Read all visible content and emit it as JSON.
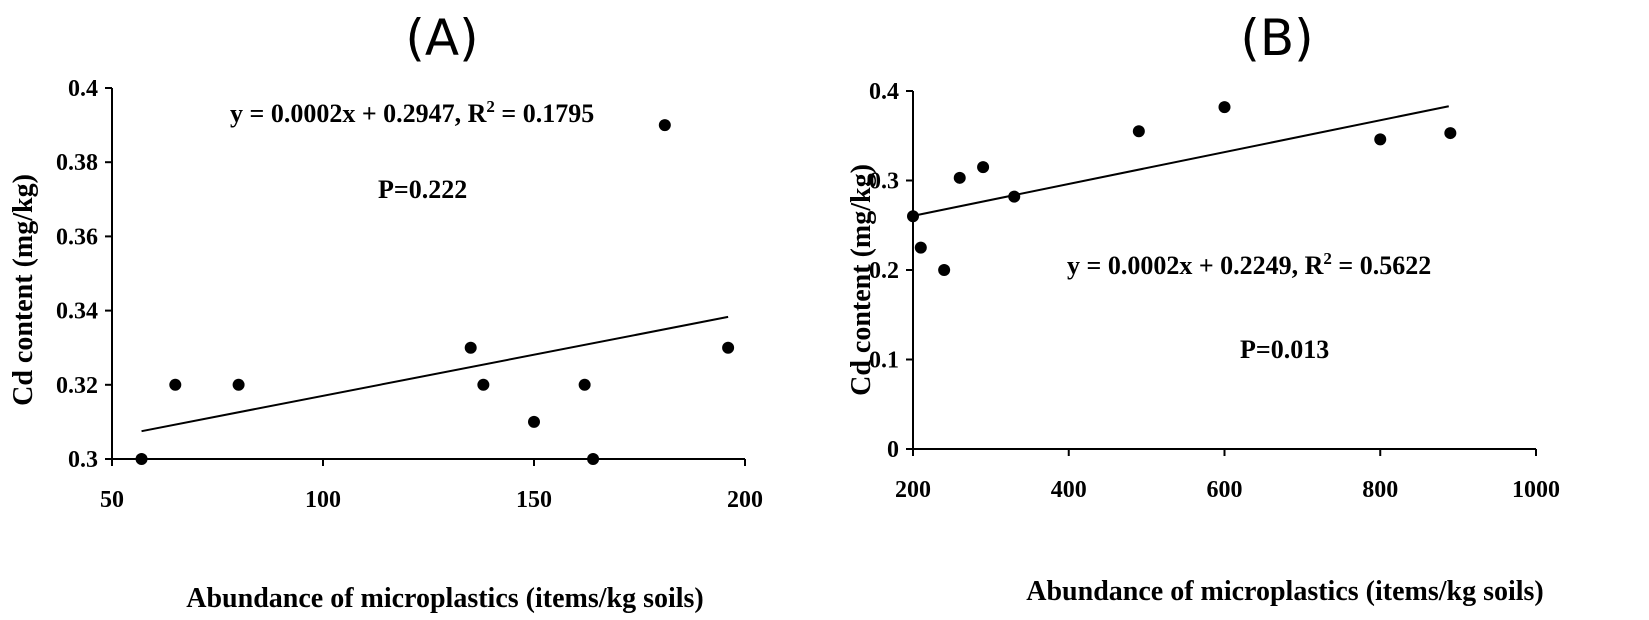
{
  "chart_data": [
    {
      "type": "scatter",
      "panel_label": "(A)",
      "xlabel": "Abundance of microplastics (items/kg soils)",
      "ylabel": "Cd content (mg/kg)",
      "xlim": [
        50,
        200
      ],
      "ylim": [
        0.3,
        0.4
      ],
      "x_ticks": [
        50,
        100,
        150,
        200
      ],
      "x_tick_labels": [
        "50",
        "100",
        "150",
        "200"
      ],
      "y_ticks": [
        0.3,
        0.32,
        0.34,
        0.36,
        0.38,
        0.4
      ],
      "y_tick_labels": [
        "0.3",
        "0.32",
        "0.34",
        "0.36",
        "0.38",
        "0.4"
      ],
      "points": [
        {
          "x": 57,
          "y": 0.3
        },
        {
          "x": 65,
          "y": 0.32
        },
        {
          "x": 80,
          "y": 0.32
        },
        {
          "x": 135,
          "y": 0.33
        },
        {
          "x": 138,
          "y": 0.32
        },
        {
          "x": 150,
          "y": 0.31
        },
        {
          "x": 162,
          "y": 0.32
        },
        {
          "x": 164,
          "y": 0.3
        },
        {
          "x": 181,
          "y": 0.39
        },
        {
          "x": 196,
          "y": 0.33
        }
      ],
      "trendline": {
        "x": [
          57,
          196
        ],
        "y": [
          0.3075,
          0.3383
        ]
      },
      "equation_parts": [
        "y = 0.0002x + 0.2947, R",
        "2",
        " = 0.1795"
      ],
      "p_value": "P=0.222"
    },
    {
      "type": "scatter",
      "panel_label": "(B)",
      "xlabel": "Abundance of microplastics (items/kg soils)",
      "ylabel": "Cd content (mg/kg)",
      "xlim": [
        200,
        1000
      ],
      "ylim": [
        0,
        0.4
      ],
      "x_ticks": [
        200,
        400,
        600,
        800,
        1000
      ],
      "x_tick_labels": [
        "200",
        "400",
        "600",
        "800",
        "1000"
      ],
      "y_ticks": [
        0,
        0.1,
        0.2,
        0.3,
        0.4
      ],
      "y_tick_labels": [
        "0",
        "0.1",
        "0.2",
        "0.3",
        "0.4"
      ],
      "points": [
        {
          "x": 200,
          "y": 0.26
        },
        {
          "x": 210,
          "y": 0.225
        },
        {
          "x": 240,
          "y": 0.2
        },
        {
          "x": 260,
          "y": 0.303
        },
        {
          "x": 290,
          "y": 0.315
        },
        {
          "x": 330,
          "y": 0.282
        },
        {
          "x": 490,
          "y": 0.355
        },
        {
          "x": 600,
          "y": 0.382
        },
        {
          "x": 800,
          "y": 0.346
        },
        {
          "x": 890,
          "y": 0.353
        }
      ],
      "trendline": {
        "x": [
          200,
          888
        ],
        "y": [
          0.2605,
          0.383
        ]
      },
      "equation_parts": [
        "y = 0.0002x + 0.2249, R",
        "2",
        " = 0.5622"
      ],
      "p_value": "P=0.013"
    }
  ]
}
